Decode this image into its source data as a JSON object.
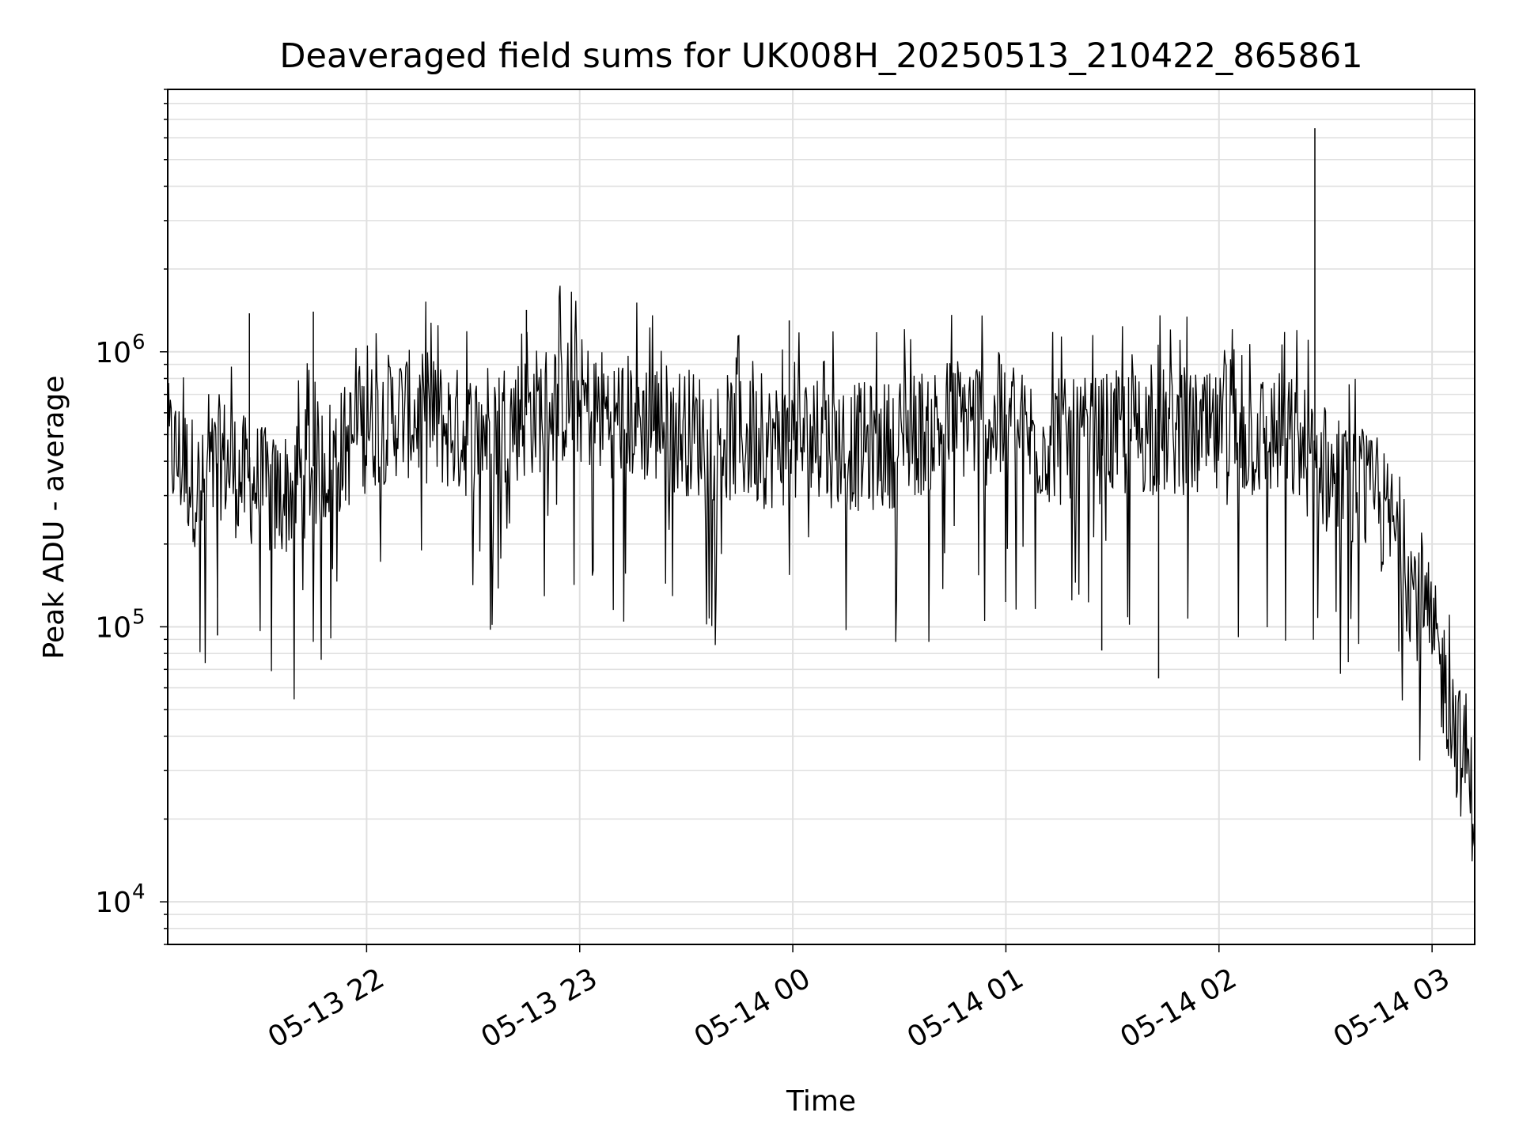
{
  "chart_data": {
    "type": "line",
    "title": "Deaveraged field sums for UK008H_20250513_210422_865861",
    "xlabel": "Time",
    "ylabel": "Peak ADU - average",
    "yscale": "log",
    "xlim": [
      "2025-05-13 21:04",
      "2025-05-14 03:12"
    ],
    "ylim": [
      7000,
      9000000
    ],
    "grid": true,
    "line_color": "#000000",
    "grid_color": "#e0e0e0",
    "x_ticks": [
      {
        "label": "05-13 22",
        "value": "2025-05-13 22:00"
      },
      {
        "label": "05-13 23",
        "value": "2025-05-13 23:00"
      },
      {
        "label": "05-14 00",
        "value": "2025-05-14 00:00"
      },
      {
        "label": "05-14 01",
        "value": "2025-05-14 01:00"
      },
      {
        "label": "05-14 02",
        "value": "2025-05-14 02:00"
      },
      {
        "label": "05-14 03",
        "value": "2025-05-14 03:00"
      }
    ],
    "y_ticks": [
      {
        "base": "10",
        "exp": "4",
        "value": 10000
      },
      {
        "base": "10",
        "exp": "5",
        "value": 100000
      },
      {
        "base": "10",
        "exp": "6",
        "value": 1000000
      }
    ],
    "series": [
      {
        "points": [
          [
            "2025-05-13 21:04",
            450000
          ],
          [
            "2025-05-13 21:09",
            380000
          ],
          [
            "2025-05-13 21:14",
            300000
          ],
          [
            "2025-05-13 21:19",
            420000
          ],
          [
            "2025-05-13 21:24",
            350000
          ],
          [
            "2025-05-13 21:29",
            330000
          ],
          [
            "2025-05-13 21:34",
            290000
          ],
          [
            "2025-05-13 21:39",
            320000
          ],
          [
            "2025-05-13 21:44",
            380000
          ],
          [
            "2025-05-13 21:49",
            400000
          ],
          [
            "2025-05-13 21:54",
            450000
          ],
          [
            "2025-05-13 21:59",
            520000
          ],
          [
            "2025-05-13 22:04",
            560000
          ],
          [
            "2025-05-13 22:09",
            600000
          ],
          [
            "2025-05-13 22:14",
            580000
          ],
          [
            "2025-05-13 22:19",
            560000
          ],
          [
            "2025-05-13 22:24",
            520000
          ],
          [
            "2025-05-13 22:29",
            500000
          ],
          [
            "2025-05-13 22:34",
            540000
          ],
          [
            "2025-05-13 22:39",
            560000
          ],
          [
            "2025-05-13 22:44",
            580000
          ],
          [
            "2025-05-13 22:49",
            620000
          ],
          [
            "2025-05-13 22:54",
            650000
          ],
          [
            "2025-05-13 22:59",
            680000
          ],
          [
            "2025-05-13 23:04",
            620000
          ],
          [
            "2025-05-13 23:09",
            600000
          ],
          [
            "2025-05-13 23:14",
            580000
          ],
          [
            "2025-05-13 23:19",
            560000
          ],
          [
            "2025-05-13 23:24",
            540000
          ],
          [
            "2025-05-13 23:29",
            520000
          ],
          [
            "2025-05-13 23:34",
            500000
          ],
          [
            "2025-05-13 23:39",
            490000
          ],
          [
            "2025-05-13 23:44",
            480000
          ],
          [
            "2025-05-13 23:49",
            470000
          ],
          [
            "2025-05-13 23:54",
            460000
          ],
          [
            "2025-05-13 23:59",
            470000
          ],
          [
            "2025-05-14 00:04",
            480000
          ],
          [
            "2025-05-14 00:09",
            470000
          ],
          [
            "2025-05-14 00:14",
            460000
          ],
          [
            "2025-05-14 00:19",
            450000
          ],
          [
            "2025-05-14 00:24",
            450000
          ],
          [
            "2025-05-14 00:29",
            470000
          ],
          [
            "2025-05-14 00:34",
            500000
          ],
          [
            "2025-05-14 00:39",
            530000
          ],
          [
            "2025-05-14 00:44",
            560000
          ],
          [
            "2025-05-14 00:49",
            580000
          ],
          [
            "2025-05-14 00:54",
            560000
          ],
          [
            "2025-05-14 00:59",
            520000
          ],
          [
            "2025-05-14 01:04",
            500000
          ],
          [
            "2025-05-14 01:09",
            480000
          ],
          [
            "2025-05-14 01:14",
            470000
          ],
          [
            "2025-05-14 01:19",
            460000
          ],
          [
            "2025-05-14 01:24",
            470000
          ],
          [
            "2025-05-14 01:29",
            490000
          ],
          [
            "2025-05-14 01:34",
            500000
          ],
          [
            "2025-05-14 01:39",
            520000
          ],
          [
            "2025-05-14 01:44",
            510000
          ],
          [
            "2025-05-14 01:49",
            500000
          ],
          [
            "2025-05-14 01:54",
            490000
          ],
          [
            "2025-05-14 01:59",
            480000
          ],
          [
            "2025-05-14 02:04",
            480000
          ],
          [
            "2025-05-14 02:09",
            490000
          ],
          [
            "2025-05-14 02:14",
            500000
          ],
          [
            "2025-05-14 02:19",
            490000
          ],
          [
            "2025-05-14 02:24",
            440000
          ],
          [
            "2025-05-14 02:29",
            380000
          ],
          [
            "2025-05-14 02:34",
            320000
          ],
          [
            "2025-05-14 02:39",
            300000
          ],
          [
            "2025-05-14 02:44",
            280000
          ],
          [
            "2025-05-14 02:49",
            230000
          ],
          [
            "2025-05-14 02:54",
            150000
          ],
          [
            "2025-05-14 02:59",
            100000
          ],
          [
            "2025-05-14 03:04",
            60000
          ],
          [
            "2025-05-14 03:08",
            35000
          ],
          [
            "2025-05-14 03:12",
            22000
          ]
        ]
      }
    ],
    "annotations": [
      {
        "x": "2025-05-14 02:27",
        "y": 6500000
      },
      {
        "x": "2025-05-13 21:27",
        "y": 1380000
      },
      {
        "x": "2025-05-13 21:45",
        "y": 1400000
      },
      {
        "x": "2025-05-13 22:45",
        "y": 1420000
      },
      {
        "x": "2025-05-13 23:59",
        "y": 1300000
      },
      {
        "x": "2025-05-14 01:43",
        "y": 65000
      },
      {
        "x": "2025-05-14 01:27",
        "y": 82000
      },
      {
        "x": "2025-05-13 21:18",
        "y": 93000
      }
    ]
  }
}
